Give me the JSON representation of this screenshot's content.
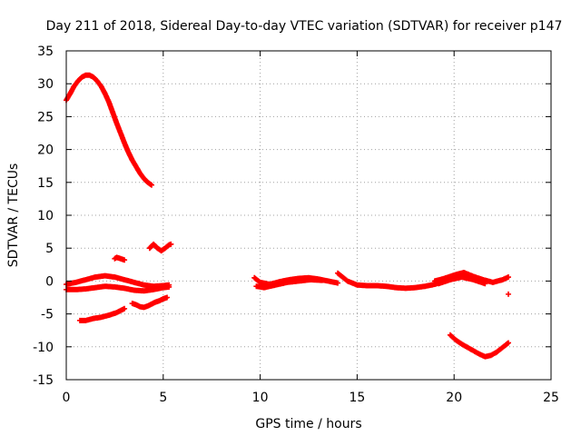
{
  "chart_data": {
    "type": "scatter",
    "title": "Day 211 of 2018, Sidereal Day-to-day VTEC variation (SDTVAR) for receiver p147",
    "xlabel": "GPS time / hours",
    "ylabel": "SDTVAR / TECUs",
    "xlim": [
      0,
      25
    ],
    "ylim": [
      -15,
      35
    ],
    "xticks": [
      0,
      5,
      10,
      15,
      20,
      25
    ],
    "yticks": [
      -15,
      -10,
      -5,
      0,
      5,
      10,
      15,
      20,
      25,
      30,
      35
    ],
    "grid": true,
    "series_color": "#ff0000",
    "series": [
      {
        "name": "high-arc",
        "x": [
          0.0,
          0.2,
          0.4,
          0.6,
          0.8,
          1.0,
          1.2,
          1.4,
          1.6,
          1.8,
          2.0,
          2.2,
          2.4,
          2.6,
          2.8,
          3.0,
          3.2,
          3.4,
          3.6,
          3.8,
          4.0,
          4.2,
          4.4
        ],
        "y": [
          27.5,
          28.5,
          29.6,
          30.4,
          31.0,
          31.3,
          31.3,
          31.0,
          30.4,
          29.6,
          28.5,
          27.2,
          25.6,
          24.0,
          22.5,
          21.0,
          19.6,
          18.4,
          17.4,
          16.4,
          15.6,
          15.0,
          14.6
        ]
      },
      {
        "name": "arc-5",
        "x": [
          4.3,
          4.5,
          4.7,
          4.9,
          5.1,
          5.3,
          5.4
        ],
        "y": [
          5.0,
          5.6,
          5.0,
          4.6,
          5.0,
          5.5,
          5.6
        ]
      },
      {
        "name": "arc-3",
        "x": [
          2.5,
          2.6,
          2.8,
          3.0
        ],
        "y": [
          3.4,
          3.6,
          3.4,
          3.2
        ]
      },
      {
        "name": "near-zero-early-a",
        "x": [
          0.0,
          0.5,
          1.0,
          1.5,
          2.0,
          2.5,
          3.0,
          3.5,
          4.0,
          4.5,
          5.0,
          5.3
        ],
        "y": [
          -0.5,
          -0.2,
          0.2,
          0.6,
          0.8,
          0.6,
          0.2,
          -0.2,
          -0.6,
          -0.8,
          -0.7,
          -0.6
        ]
      },
      {
        "name": "near-zero-early-b",
        "x": [
          0.0,
          0.5,
          1.0,
          1.5,
          2.0,
          2.5,
          3.0,
          3.5,
          4.0,
          4.5,
          5.0,
          5.3
        ],
        "y": [
          -1.3,
          -1.3,
          -1.2,
          -1.0,
          -0.8,
          -0.9,
          -1.1,
          -1.4,
          -1.5,
          -1.3,
          -1.0,
          -0.9
        ]
      },
      {
        "name": "dip-arc",
        "x": [
          3.4,
          3.6,
          3.8,
          4.0,
          4.2,
          4.4,
          4.6,
          4.8,
          5.0,
          5.2
        ],
        "y": [
          -3.4,
          -3.6,
          -3.9,
          -4.0,
          -3.8,
          -3.5,
          -3.2,
          -3.0,
          -2.7,
          -2.5
        ]
      },
      {
        "name": "rising-low",
        "x": [
          0.7,
          1.0,
          1.4,
          1.8,
          2.2,
          2.6,
          3.0
        ],
        "y": [
          -6.0,
          -6.0,
          -5.7,
          -5.5,
          -5.2,
          -4.8,
          -4.2
        ]
      },
      {
        "name": "midday-pass",
        "x": [
          9.7,
          10.0,
          10.5,
          11.0,
          11.5,
          12.0,
          12.5,
          13.0,
          13.5,
          14.0
        ],
        "y": [
          0.5,
          -0.2,
          -0.5,
          -0.1,
          0.2,
          0.4,
          0.5,
          0.3,
          0.0,
          -0.3
        ]
      },
      {
        "name": "midday-pass-b",
        "x": [
          9.8,
          10.2,
          10.8,
          11.4,
          12.0,
          12.6,
          13.2
        ],
        "y": [
          -0.8,
          -1.0,
          -0.6,
          -0.2,
          0.0,
          0.2,
          0.1
        ]
      },
      {
        "name": "afternoon-pass",
        "x": [
          14.0,
          14.5,
          15.0,
          15.5,
          16.0,
          16.5,
          17.0,
          17.5,
          18.0,
          18.5,
          19.0,
          19.5
        ],
        "y": [
          1.2,
          0.0,
          -0.6,
          -0.7,
          -0.7,
          -0.8,
          -1.0,
          -1.1,
          -1.0,
          -0.8,
          -0.5,
          0.0
        ]
      },
      {
        "name": "late-pass",
        "x": [
          19.0,
          19.5,
          20.0,
          20.5,
          21.0,
          21.5,
          22.0,
          22.5,
          22.8
        ],
        "y": [
          0.0,
          0.4,
          0.9,
          1.3,
          0.7,
          0.2,
          -0.2,
          0.2,
          0.6
        ]
      },
      {
        "name": "late-pass-b",
        "x": [
          19.2,
          19.8,
          20.4,
          21.0,
          21.6
        ],
        "y": [
          -0.4,
          0.2,
          0.6,
          0.2,
          -0.4
        ]
      },
      {
        "name": "low-v-arc",
        "x": [
          19.8,
          20.1,
          20.4,
          20.7,
          21.0,
          21.3,
          21.6,
          21.9,
          22.2,
          22.5,
          22.8
        ],
        "y": [
          -8.2,
          -9.0,
          -9.6,
          -10.1,
          -10.6,
          -11.1,
          -11.5,
          -11.3,
          -10.8,
          -10.1,
          -9.4
        ]
      },
      {
        "name": "isolated",
        "x": [
          22.8
        ],
        "y": [
          -2.0
        ]
      }
    ]
  }
}
